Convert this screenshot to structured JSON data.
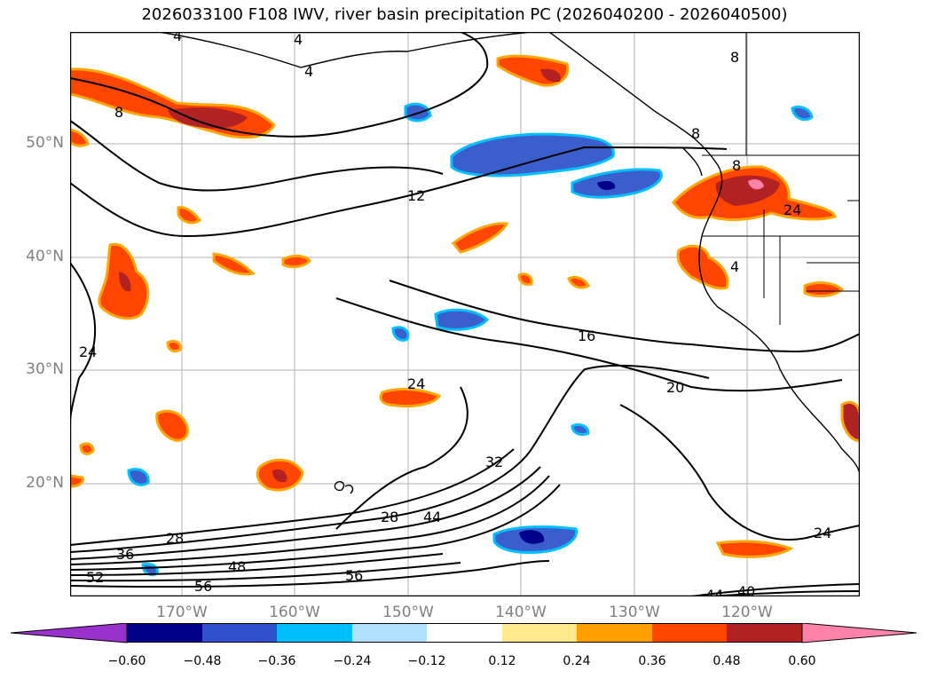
{
  "title": "2026033100 F108 IWV, river basin precipitation PC (2026040200 - 2026040500)",
  "map": {
    "lat_labels": [
      "50°N",
      "40°N",
      "30°N",
      "20°N"
    ],
    "lon_labels": [
      "170°W",
      "160°W",
      "150°W",
      "140°W",
      "130°W",
      "120°W"
    ],
    "contour_labels": [
      "4",
      "4",
      "4",
      "8",
      "8",
      "8",
      "8",
      "12",
      "16",
      "20",
      "24",
      "24",
      "24",
      "24",
      "28",
      "28",
      "32",
      "36",
      "40",
      "44",
      "44",
      "48",
      "52",
      "56",
      "56",
      "4"
    ],
    "fill_colors": {
      "light_orange": "#ffa500",
      "orange_red": "#ff4500",
      "dark_red": "#b22222",
      "pink": "#ff82ab",
      "blue": "#3a5fcd",
      "navy": "#00008b",
      "sky": "#00bfff",
      "yellow": "#ffe680"
    }
  },
  "colorbar": {
    "tick_labels": [
      "−0.60",
      "−0.48",
      "−0.36",
      "−0.24",
      "−0.12",
      "0.12",
      "0.24",
      "0.36",
      "0.48",
      "0.60"
    ],
    "colors": [
      "#9932cc",
      "#000088",
      "#3050cd",
      "#00bfff",
      "#afe1ff",
      "#ffffff",
      "#ffe98a",
      "#ffa000",
      "#ff4500",
      "#b22222",
      "#ff82ab",
      "#ff82ab"
    ]
  }
}
